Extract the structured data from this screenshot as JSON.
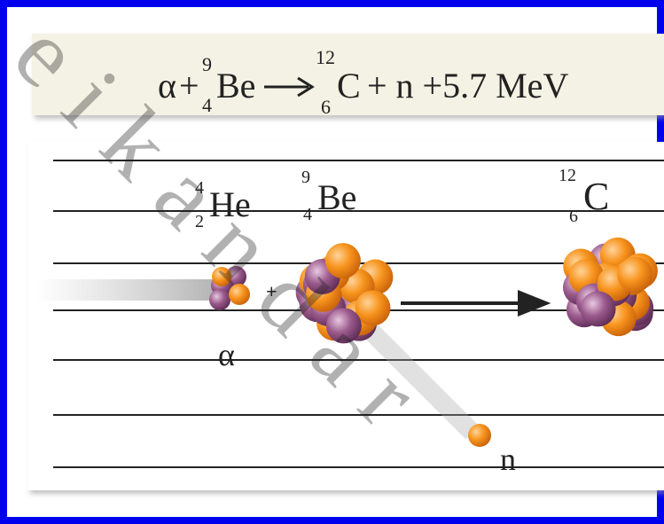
{
  "equation": {
    "alpha": "α",
    "plus": "+",
    "be_mass": "9",
    "be_atomic": "4",
    "be": "Be",
    "c_mass": "12",
    "c_atomic": "6",
    "c": "C",
    "rest": "+ n +5.7 MeV"
  },
  "labels": {
    "he_mass": "4",
    "he_atomic": "2",
    "he": "He",
    "be_mass": "9",
    "be_atomic": "4",
    "be": "Be",
    "c_mass": "12",
    "c_atomic": "6",
    "c": "C",
    "plus": "+",
    "alpha": "α",
    "neutron": "n"
  },
  "watermark": "eikandar"
}
